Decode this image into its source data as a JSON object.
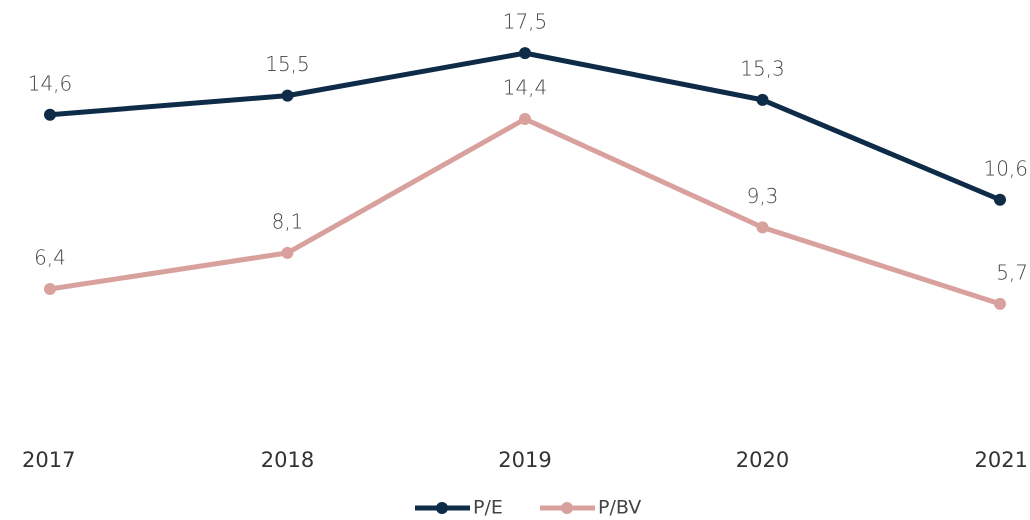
{
  "chart_data": {
    "type": "line",
    "categories": [
      "2017",
      "2018",
      "2019",
      "2020",
      "2021"
    ],
    "series": [
      {
        "name": "P/E",
        "color": "#0e2b48",
        "values": [
          14.6,
          15.5,
          17.5,
          15.3,
          10.6
        ],
        "value_labels": [
          "14,6",
          "15,5",
          "17,5",
          "15,3",
          "10,6"
        ]
      },
      {
        "name": "P/BV",
        "color": "#d9a19d",
        "values": [
          6.4,
          8.1,
          14.4,
          9.3,
          5.7
        ],
        "value_labels": [
          "6,4",
          "8,1",
          "14,4",
          "9,3",
          "5,7"
        ]
      }
    ],
    "ylim": [
      0,
      20
    ],
    "legend": "bottom"
  }
}
